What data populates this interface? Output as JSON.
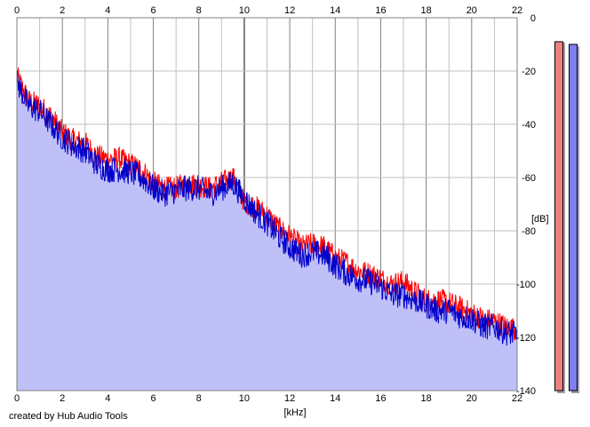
{
  "credit": "created by Hub Audio Tools",
  "colors": {
    "left_channel": "#ff0000",
    "right_channel": "#0000cc",
    "fill": "#c0c0f8",
    "grid_minor": "#c0c0c0",
    "grid_major": "#808080",
    "meter_left": "#f08080",
    "meter_right": "#8080f0"
  },
  "meters": {
    "left_level_db": -9,
    "right_level_db": -10
  },
  "chart_data": {
    "type": "area",
    "xlabel": "[kHz]",
    "ylabel": "[dB]",
    "xlim": [
      0,
      22
    ],
    "ylim": [
      -140,
      0
    ],
    "x_ticks": [
      "0",
      "2",
      "4",
      "6",
      "8",
      "10",
      "12",
      "14",
      "16",
      "18",
      "20",
      "22"
    ],
    "y_ticks": [
      "0",
      "-20",
      "-40",
      "-60",
      "-80",
      "-100",
      "-120",
      "-140"
    ],
    "grid": true,
    "series": [
      {
        "color": "#ff0000",
        "x": [
          0,
          0.5,
          1,
          1.5,
          2,
          2.5,
          3,
          3.5,
          4,
          4.5,
          5,
          5.5,
          6,
          6.5,
          7,
          7.5,
          8,
          8.5,
          9,
          9.5,
          10,
          10.5,
          11,
          11.5,
          12,
          12.5,
          13,
          13.5,
          14,
          14.5,
          15,
          15.5,
          16,
          16.5,
          17,
          17.5,
          18,
          18.5,
          19,
          19.5,
          20,
          20.5,
          21,
          21.5,
          22
        ],
        "values": [
          -22,
          -31,
          -33,
          -37,
          -43,
          -46,
          -47,
          -52,
          -53,
          -53,
          -55,
          -57,
          -62,
          -64,
          -64,
          -62,
          -63,
          -64,
          -62,
          -60,
          -69,
          -71,
          -74,
          -79,
          -82,
          -86,
          -85,
          -86,
          -90,
          -92,
          -95,
          -96,
          -98,
          -100,
          -99,
          -103,
          -106,
          -106,
          -107,
          -109,
          -111,
          -113,
          -114,
          -116,
          -117
        ]
      },
      {
        "color": "#0000cc",
        "x": [
          0,
          0.5,
          1,
          1.5,
          2,
          2.5,
          3,
          3.5,
          4,
          4.5,
          5,
          5.5,
          6,
          6.5,
          7,
          7.5,
          8,
          8.5,
          9,
          9.5,
          10,
          10.5,
          11,
          11.5,
          12,
          12.5,
          13,
          13.5,
          14,
          14.5,
          15,
          15.5,
          16,
          16.5,
          17,
          17.5,
          18,
          18.5,
          19,
          19.5,
          20,
          20.5,
          21,
          21.5,
          22
        ],
        "values": [
          -24,
          -33,
          -35,
          -40,
          -45,
          -48,
          -50,
          -55,
          -57,
          -57,
          -58,
          -60,
          -64,
          -66,
          -65,
          -64,
          -64,
          -66,
          -64,
          -62,
          -68,
          -73,
          -77,
          -82,
          -86,
          -89,
          -88,
          -89,
          -93,
          -96,
          -98,
          -99,
          -101,
          -104,
          -104,
          -106,
          -108,
          -110,
          -110,
          -112,
          -113,
          -116,
          -116,
          -118,
          -119
        ]
      }
    ]
  }
}
